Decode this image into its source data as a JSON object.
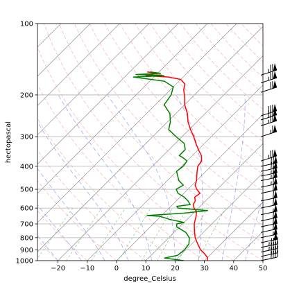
{
  "chart_data": {
    "type": "line",
    "subtype": "skew-t log-p",
    "xlabel": "degree_Celsius",
    "ylabel": "hectopascal",
    "xlim": [
      -27,
      50
    ],
    "ylim": [
      1000,
      100
    ],
    "y_scale": "log",
    "x_ticks": [
      -20,
      -10,
      0,
      10,
      20,
      30,
      40,
      50
    ],
    "y_ticks": [
      100,
      200,
      300,
      400,
      500,
      600,
      700,
      800,
      900,
      1000
    ],
    "grid": true,
    "legend": "none",
    "colors": {
      "temperature": "#ff0000",
      "dewpoint": "#008000",
      "isotherm": "#808080",
      "dry_adiabat": "#ff8080",
      "moist_adiabat": "#6060ff",
      "mixing_ratio": "#40a040",
      "barb": "#000000"
    },
    "series": [
      {
        "key": "temperature",
        "points": [
          [
            1000,
            31.0
          ],
          [
            970,
            30.0
          ],
          [
            925,
            27.0
          ],
          [
            900,
            25.0
          ],
          [
            850,
            22.0
          ],
          [
            800,
            19.0
          ],
          [
            750,
            16.5
          ],
          [
            700,
            14.0
          ],
          [
            650,
            12.0
          ],
          [
            620,
            10.5
          ],
          [
            600,
            8.5
          ],
          [
            580,
            7.0
          ],
          [
            560,
            6.5
          ],
          [
            540,
            5.0
          ],
          [
            520,
            5.5
          ],
          [
            500,
            3.0
          ],
          [
            480,
            1.0
          ],
          [
            460,
            0.0
          ],
          [
            440,
            -1.5
          ],
          [
            420,
            -3.0
          ],
          [
            400,
            -4.5
          ],
          [
            380,
            -5.0
          ],
          [
            360,
            -7.0
          ],
          [
            340,
            -10.0
          ],
          [
            320,
            -13.0
          ],
          [
            300,
            -16.0
          ],
          [
            280,
            -19.5
          ],
          [
            260,
            -23.0
          ],
          [
            240,
            -26.0
          ],
          [
            220,
            -30.0
          ],
          [
            205,
            -32.5
          ],
          [
            190,
            -35.5
          ],
          [
            180,
            -37.0
          ],
          [
            172,
            -40.0
          ],
          [
            168,
            -45.0
          ],
          [
            166,
            -53.0
          ],
          [
            165,
            -48.0
          ],
          [
            164,
            -53.0
          ],
          [
            162,
            -50.0
          ],
          [
            160,
            -54.0
          ]
        ]
      },
      {
        "key": "dewpoint",
        "points": [
          [
            1000,
            23.0
          ],
          [
            975,
            15.5
          ],
          [
            950,
            19.0
          ],
          [
            900,
            19.5
          ],
          [
            850,
            19.0
          ],
          [
            800,
            17.0
          ],
          [
            760,
            14.0
          ],
          [
            720,
            9.0
          ],
          [
            700,
            8.0
          ],
          [
            690,
            10.0
          ],
          [
            670,
            4.0
          ],
          [
            660,
            2.0
          ],
          [
            650,
            -0.5
          ],
          [
            645,
            -5.0
          ],
          [
            640,
            -1.0
          ],
          [
            630,
            7.0
          ],
          [
            615,
            14.0
          ],
          [
            600,
            3.0
          ],
          [
            590,
            2.0
          ],
          [
            580,
            6.0
          ],
          [
            560,
            4.0
          ],
          [
            540,
            1.5
          ],
          [
            520,
            -2.0
          ],
          [
            500,
            -4.0
          ],
          [
            480,
            -3.0
          ],
          [
            460,
            -6.0
          ],
          [
            440,
            -8.0
          ],
          [
            420,
            -10.0
          ],
          [
            400,
            -9.5
          ],
          [
            380,
            -10.0
          ],
          [
            370,
            -12.0
          ],
          [
            360,
            -14.5
          ],
          [
            340,
            -14.5
          ],
          [
            320,
            -17.0
          ],
          [
            300,
            -22.0
          ],
          [
            280,
            -27.0
          ],
          [
            260,
            -29.0
          ],
          [
            240,
            -32.0
          ],
          [
            220,
            -37.0
          ],
          [
            200,
            -38.0
          ],
          [
            185,
            -40.0
          ],
          [
            175,
            -45.0
          ],
          [
            168,
            -57.0
          ],
          [
            166,
            -47.0
          ],
          [
            164,
            -57.0
          ],
          [
            162,
            -49.0
          ],
          [
            160,
            -53.0
          ]
        ]
      }
    ],
    "wind_barbs": [
      [
        1000,
        40
      ],
      [
        960,
        40
      ],
      [
        920,
        45
      ],
      [
        880,
        45
      ],
      [
        840,
        50
      ],
      [
        800,
        55
      ],
      [
        760,
        60
      ],
      [
        720,
        60
      ],
      [
        680,
        60
      ],
      [
        640,
        55
      ],
      [
        600,
        60
      ],
      [
        560,
        60
      ],
      [
        520,
        60
      ],
      [
        490,
        65
      ],
      [
        460,
        65
      ],
      [
        440,
        65
      ],
      [
        420,
        70
      ],
      [
        400,
        70
      ],
      [
        380,
        75
      ],
      [
        300,
        65
      ],
      [
        270,
        75
      ],
      [
        255,
        80
      ],
      [
        245,
        80
      ],
      [
        195,
        70
      ],
      [
        178,
        75
      ],
      [
        165,
        75
      ]
    ]
  }
}
